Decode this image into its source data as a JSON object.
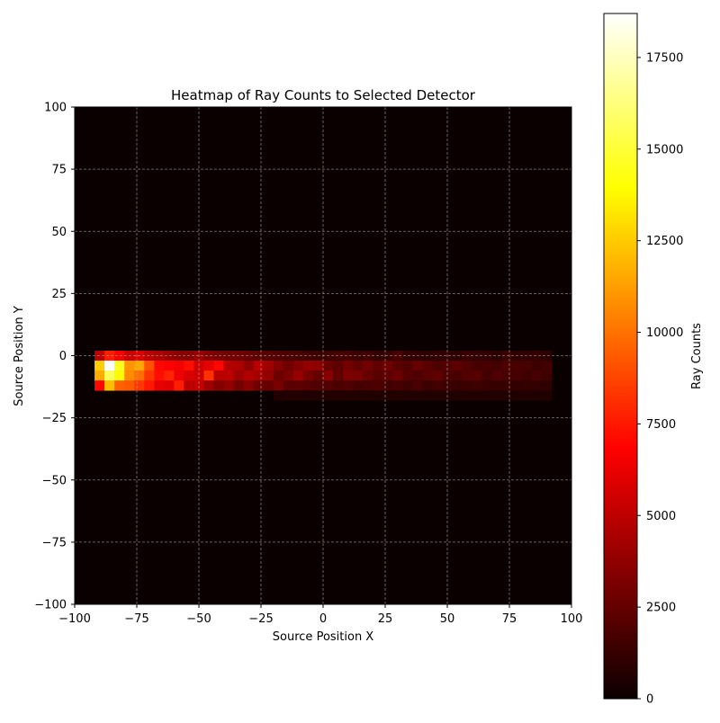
{
  "chart_data": {
    "type": "heatmap",
    "title": "Heatmap of Ray Counts to Selected Detector",
    "xlabel": "Source Position X",
    "ylabel": "Source Position Y",
    "xlim": [
      -100,
      100
    ],
    "ylim": [
      -100,
      100
    ],
    "xticks": [
      -100,
      -75,
      -50,
      -25,
      0,
      25,
      50,
      75,
      100
    ],
    "yticks": [
      -100,
      -75,
      -50,
      -25,
      0,
      25,
      50,
      75,
      100
    ],
    "grid": true,
    "colormap": "hot",
    "colorbar": {
      "label": "Ray Counts",
      "range": [
        0,
        18700
      ],
      "ticks": [
        0,
        2500,
        5000,
        7500,
        10000,
        12500,
        15000,
        17500
      ]
    },
    "cells": {
      "bin_width": 4,
      "x_start": -92,
      "x_step": 4,
      "y_rows": [
        {
          "y_range": [
            -2,
            2
          ],
          "values": [
            4800,
            7600,
            6600,
            5200,
            5800,
            4800,
            4400,
            3800,
            3300,
            3200,
            3800,
            3200,
            2800,
            2600,
            2600,
            2300,
            2000,
            1800,
            1700,
            1500,
            1400,
            1200,
            1000,
            1100,
            1300,
            1300,
            1000,
            1200,
            800,
            900,
            1400,
            800,
            700,
            600,
            700,
            800,
            600,
            900,
            800,
            700,
            500,
            1000,
            600,
            700,
            800,
            500
          ]
        },
        {
          "y_range": [
            -6,
            -2
          ],
          "values": [
            12600,
            18700,
            14500,
            11000,
            11500,
            9100,
            7000,
            6800,
            6500,
            7200,
            5400,
            6100,
            7000,
            4600,
            4400,
            3500,
            4700,
            4000,
            3200,
            2500,
            3100,
            3600,
            3500,
            2400,
            2000,
            2700,
            2200,
            2600,
            2100,
            2500,
            1900,
            1700,
            2300,
            1900,
            1500,
            1700,
            2000,
            1600,
            1300,
            1400,
            1200,
            1500,
            1400,
            1300,
            1000,
            1200
          ]
        },
        {
          "y_range": [
            -10,
            -6
          ],
          "values": [
            11600,
            15600,
            13900,
            10700,
            9900,
            8300,
            7200,
            7800,
            6400,
            5700,
            5400,
            8200,
            4700,
            4900,
            3900,
            4500,
            4100,
            3600,
            2500,
            2900,
            3700,
            2700,
            2200,
            3300,
            2100,
            3000,
            2800,
            2300,
            1900,
            2100,
            2400,
            1800,
            1600,
            1900,
            2100,
            1500,
            1400,
            1700,
            1800,
            1200,
            1600,
            1400,
            1300,
            1100,
            1400,
            1100
          ]
        },
        {
          "y_range": [
            -14,
            -10
          ],
          "values": [
            7000,
            12100,
            9500,
            9300,
            8400,
            7500,
            6100,
            5900,
            7700,
            4800,
            5100,
            3900,
            3100,
            3600,
            2700,
            3300,
            2500,
            2200,
            2800,
            1900,
            2000,
            1800,
            1600,
            1700,
            1500,
            1600,
            1300,
            1400,
            1500,
            1200,
            1300,
            1100,
            1400,
            1000,
            1200,
            1100,
            900,
            1000,
            1100,
            900,
            800,
            900,
            700,
            800,
            700,
            600
          ]
        },
        {
          "y_range": [
            -18,
            -14
          ],
          "values": [
            0,
            0,
            0,
            0,
            0,
            0,
            0,
            0,
            0,
            0,
            0,
            0,
            0,
            0,
            0,
            0,
            0,
            0,
            200,
            200,
            200,
            200,
            200,
            200,
            200,
            200,
            200,
            200,
            200,
            200,
            200,
            200,
            200,
            200,
            200,
            200,
            200,
            200,
            200,
            200,
            200,
            200,
            200,
            200,
            200,
            200
          ]
        }
      ]
    }
  }
}
